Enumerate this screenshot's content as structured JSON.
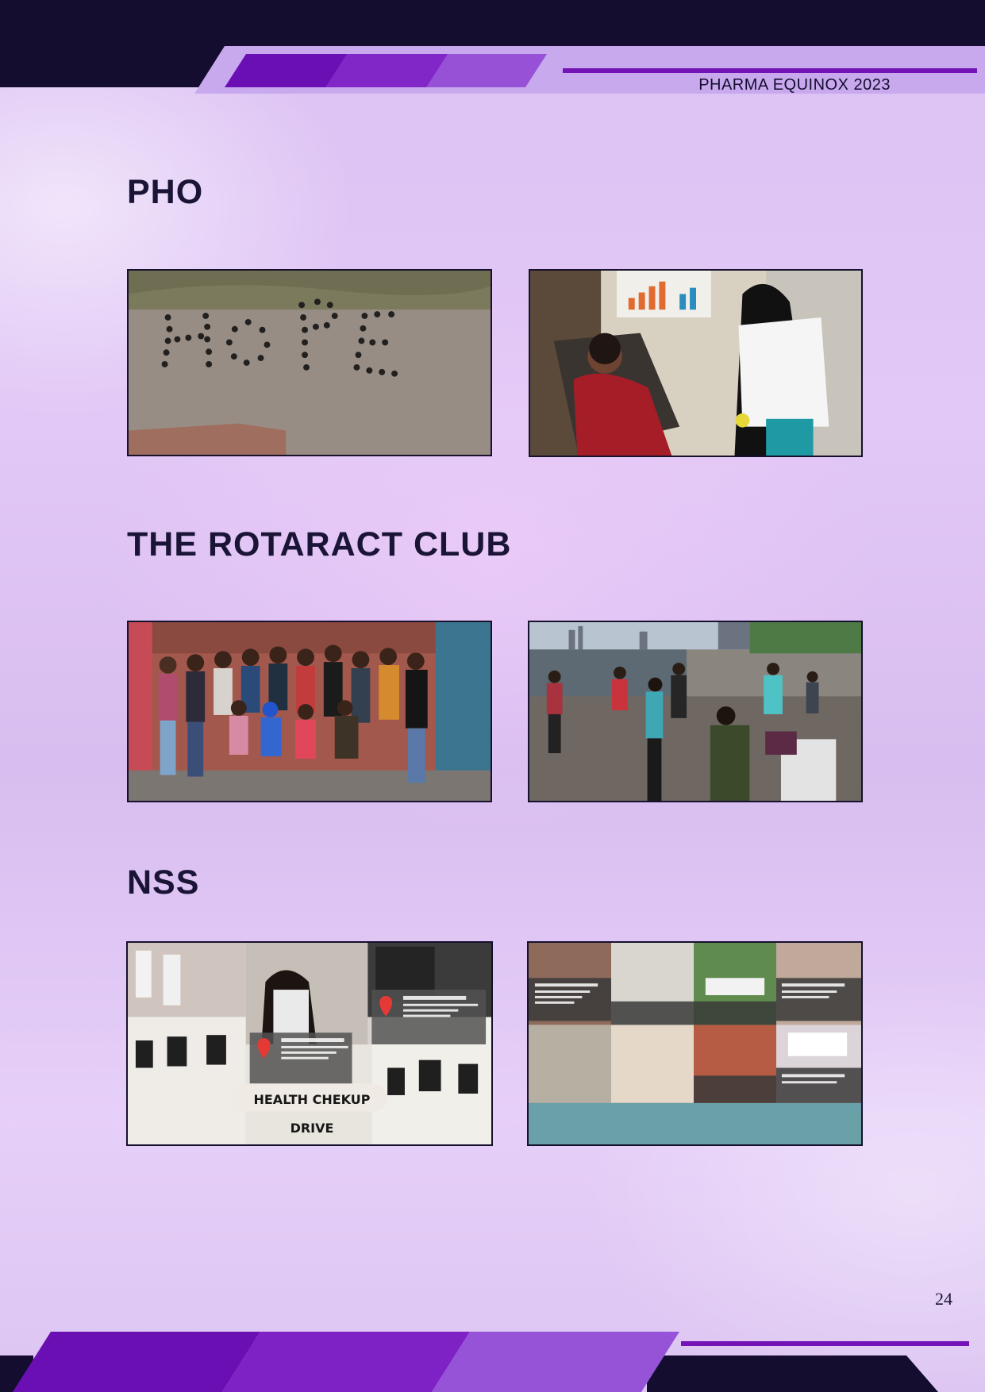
{
  "header": {
    "title": "PHARMA EQUINOX 2023"
  },
  "sections": [
    {
      "heading": "PHO",
      "photos": [
        {
          "icon": "hope-formation-photo"
        },
        {
          "icon": "blood-donation-photo"
        }
      ]
    },
    {
      "heading": "THE ROTARACT CLUB",
      "photos": [
        {
          "icon": "group-photo"
        },
        {
          "icon": "beach-cleanup-photo"
        }
      ]
    },
    {
      "heading": "NSS",
      "photos": [
        {
          "icon": "health-checkup-collage",
          "caption": "HEALTH CHEKUP DRIVE"
        },
        {
          "icon": "nss-activities-collage"
        }
      ]
    }
  ],
  "footer": {
    "page_number": "24"
  },
  "colors": {
    "dark": "#140d2f",
    "accent": "#7414b7",
    "violet": "#6a0fb3",
    "purple": "#8126c7",
    "lilac": "#9751d7"
  }
}
